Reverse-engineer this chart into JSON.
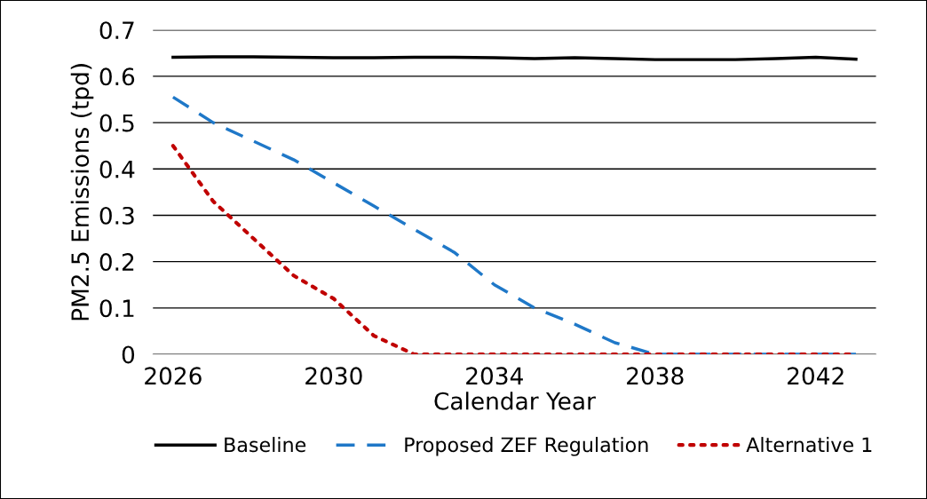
{
  "chart_data": {
    "type": "line",
    "xlabel": "Calendar Year",
    "ylabel": "PM2.5 Emissions (tpd)",
    "x": [
      2026,
      2027,
      2028,
      2029,
      2030,
      2031,
      2032,
      2033,
      2034,
      2035,
      2036,
      2037,
      2038,
      2039,
      2040,
      2041,
      2042,
      2043
    ],
    "series": [
      {
        "name": "Baseline",
        "color": "#000000",
        "line_style": "solid",
        "values": [
          0.641,
          0.642,
          0.642,
          0.641,
          0.64,
          0.64,
          0.641,
          0.641,
          0.64,
          0.638,
          0.64,
          0.638,
          0.636,
          0.636,
          0.636,
          0.638,
          0.641,
          0.637
        ]
      },
      {
        "name": "Proposed ZEF Regulation",
        "color": "#1f78c8",
        "line_style": "dashed",
        "values": [
          0.555,
          0.5,
          0.46,
          0.42,
          0.37,
          0.32,
          0.27,
          0.22,
          0.15,
          0.1,
          0.065,
          0.025,
          0,
          0,
          0,
          0,
          0,
          0
        ]
      },
      {
        "name": "Alternative 1",
        "color": "#c00000",
        "line_style": "dotted",
        "values": [
          0.45,
          0.33,
          0.25,
          0.17,
          0.12,
          0.04,
          0,
          0,
          0,
          0,
          0,
          0,
          0,
          0,
          0,
          0,
          0,
          0
        ]
      }
    ],
    "xlim": [
      2025.5,
      2043.5
    ],
    "xticks": [
      2026,
      2030,
      2034,
      2038,
      2042
    ],
    "ylim": [
      0,
      0.7
    ],
    "yticks": [
      0,
      0.1,
      0.2,
      0.3,
      0.4,
      0.5,
      0.6,
      0.7
    ],
    "grid": "y",
    "legend": "bottom",
    "marker": "none"
  }
}
